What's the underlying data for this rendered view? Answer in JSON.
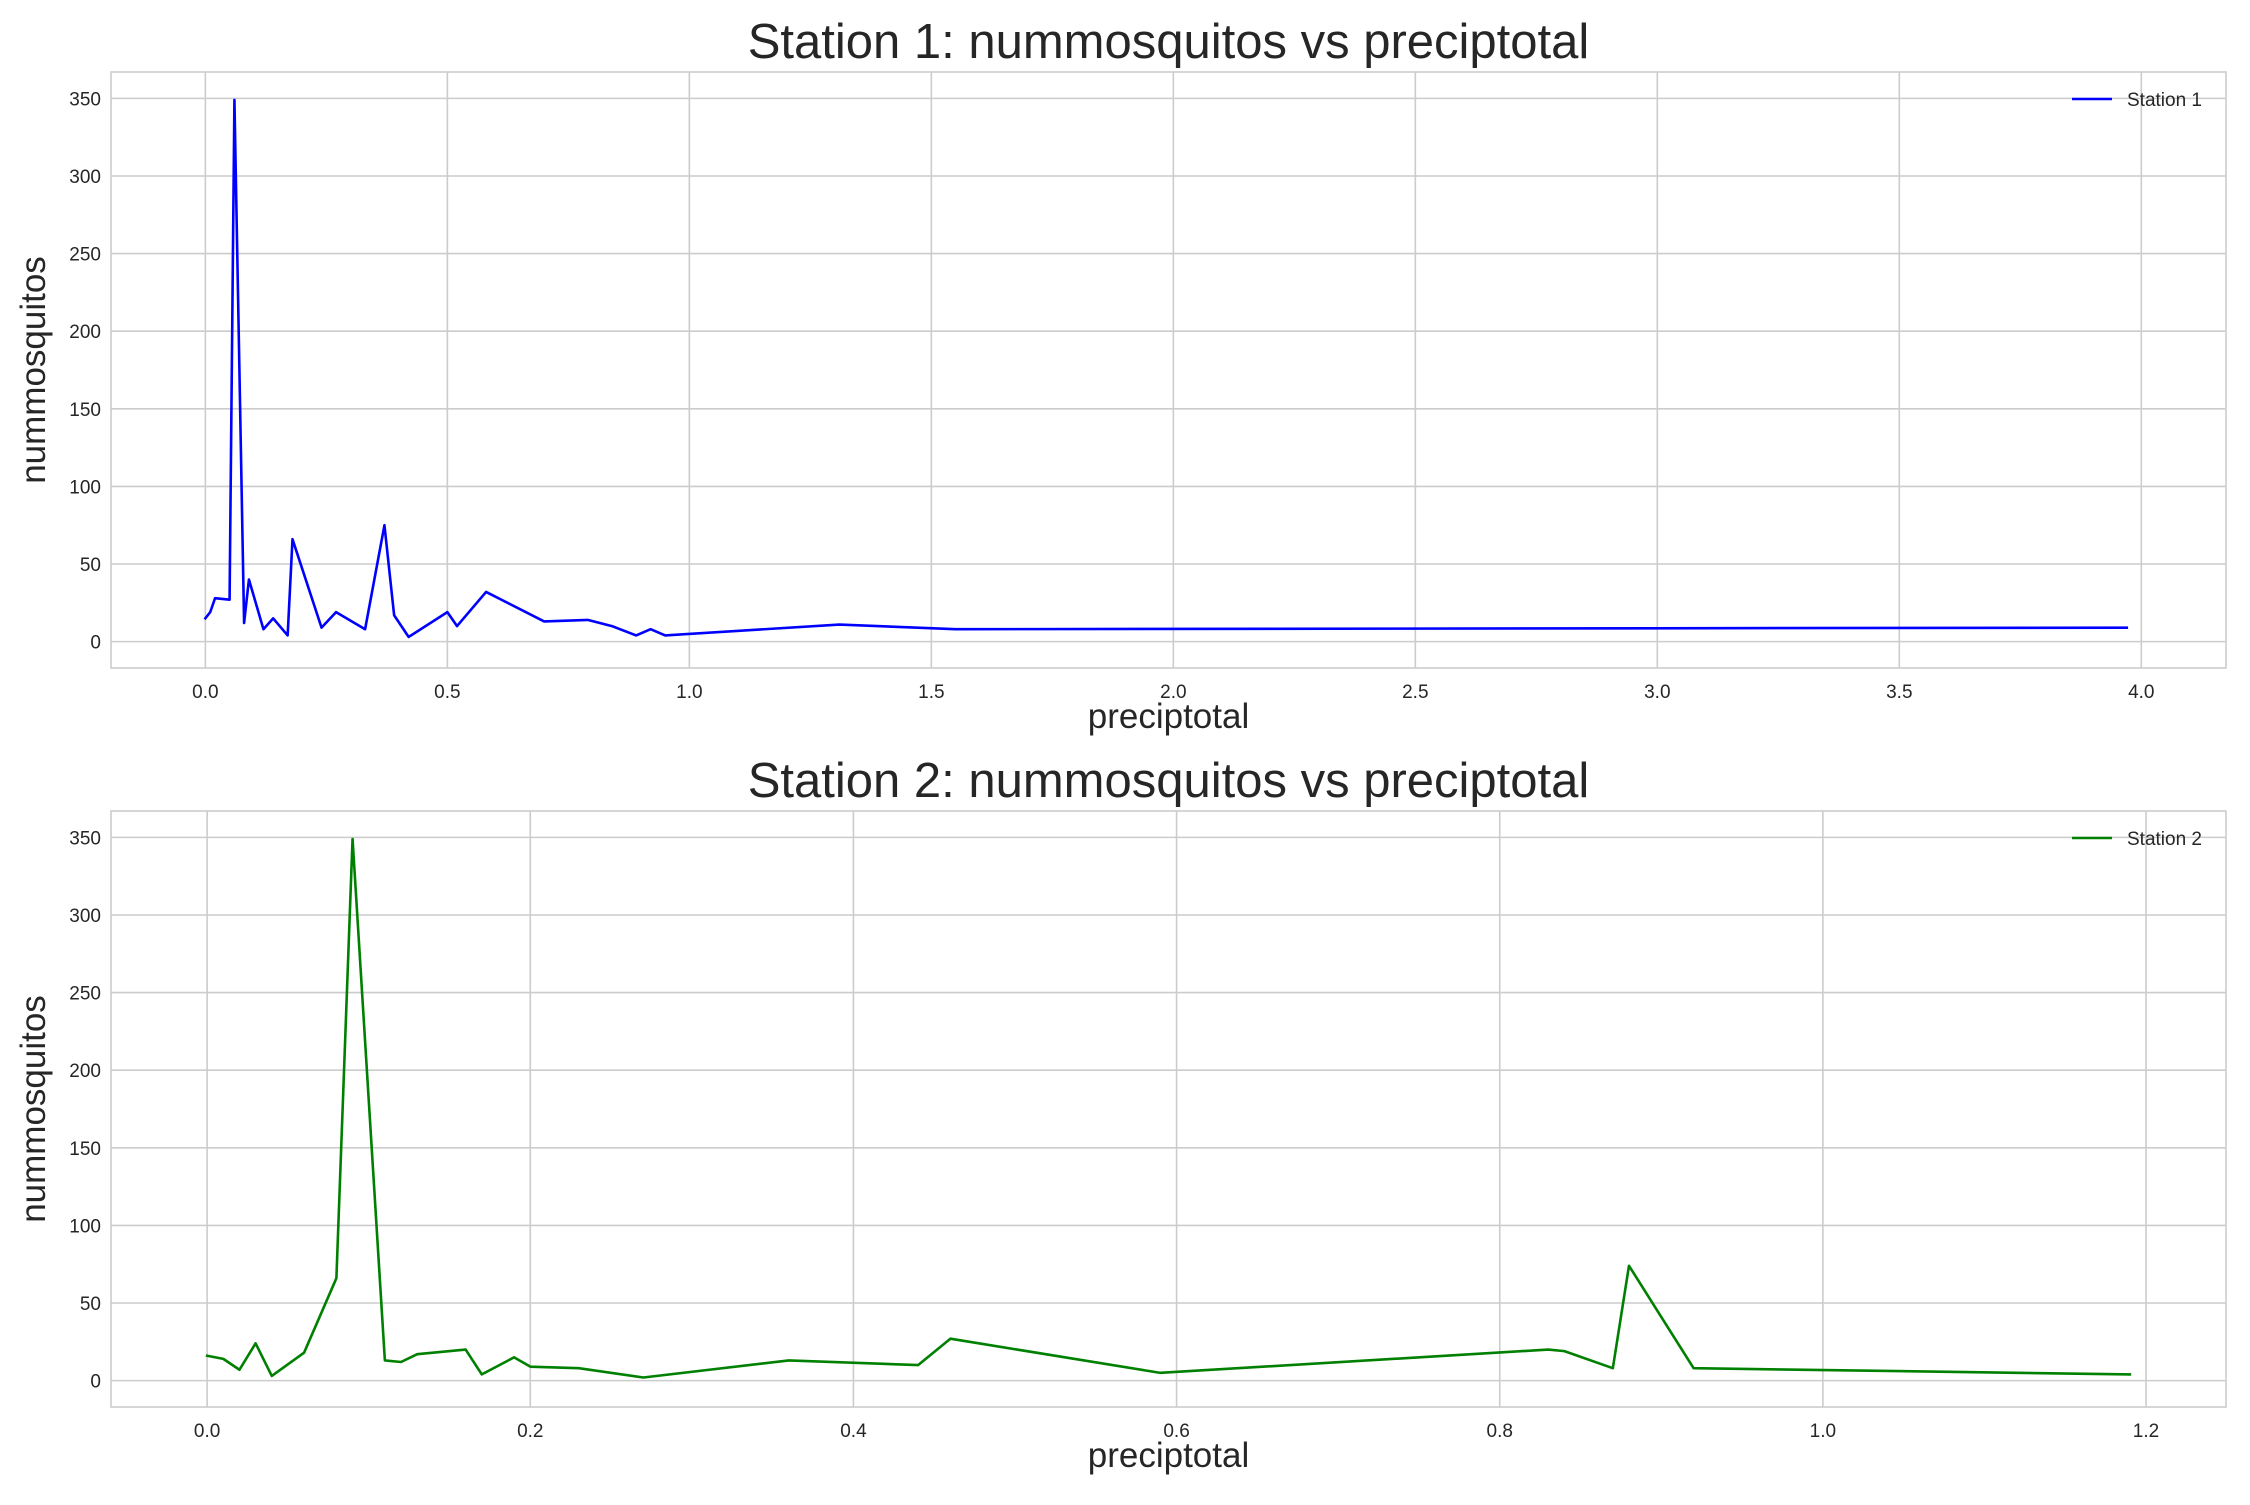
{
  "chart_data": [
    {
      "type": "line",
      "title": "Station 1:  nummosquitos vs  preciptotal",
      "xlabel": "preciptotal",
      "ylabel": "nummosquitos",
      "xlim": [
        -0.195,
        4.175
      ],
      "ylim": [
        -17,
        367
      ],
      "xticks": [
        0.0,
        0.5,
        1.0,
        1.5,
        2.0,
        2.5,
        3.0,
        3.5,
        4.0
      ],
      "xtick_labels": [
        "0.0",
        "0.5",
        "1.0",
        "1.5",
        "2.0",
        "2.5",
        "3.0",
        "3.5",
        "4.0"
      ],
      "yticks": [
        0,
        50,
        100,
        150,
        200,
        250,
        300,
        350
      ],
      "ytick_labels": [
        "0",
        "50",
        "100",
        "150",
        "200",
        "250",
        "300",
        "350"
      ],
      "grid": true,
      "legend_position": "top-right",
      "series": [
        {
          "name": "Station 1",
          "color": "#0000ff",
          "x": [
            0.0,
            0.01,
            0.02,
            0.05,
            0.06,
            0.08,
            0.09,
            0.12,
            0.14,
            0.17,
            0.18,
            0.24,
            0.27,
            0.33,
            0.37,
            0.39,
            0.42,
            0.5,
            0.52,
            0.58,
            0.7,
            0.79,
            0.84,
            0.89,
            0.92,
            0.95,
            1.31,
            1.55,
            3.97
          ],
          "y": [
            15,
            19,
            28,
            27,
            349,
            12,
            40,
            8,
            15,
            4,
            66,
            9,
            19,
            8,
            75,
            17,
            3,
            19,
            10,
            32,
            13,
            14,
            10,
            4,
            8,
            4,
            11,
            8,
            9
          ]
        }
      ]
    },
    {
      "type": "line",
      "title": "Station 2:  nummosquitos vs  preciptotal",
      "xlabel": "preciptotal",
      "ylabel": "nummosquitos",
      "xlim": [
        -0.0595,
        1.2495
      ],
      "ylim": [
        -17,
        367
      ],
      "xticks": [
        0.0,
        0.2,
        0.4,
        0.6,
        0.8,
        1.0,
        1.2
      ],
      "xtick_labels": [
        "0.0",
        "0.2",
        "0.4",
        "0.6",
        "0.8",
        "1.0",
        "1.2"
      ],
      "yticks": [
        0,
        50,
        100,
        150,
        200,
        250,
        300,
        350
      ],
      "ytick_labels": [
        "0",
        "50",
        "100",
        "150",
        "200",
        "250",
        "300",
        "350"
      ],
      "grid": true,
      "legend_position": "top-right",
      "series": [
        {
          "name": "Station 2",
          "color": "#008000",
          "x": [
            0.0,
            0.01,
            0.02,
            0.03,
            0.04,
            0.06,
            0.08,
            0.09,
            0.11,
            0.12,
            0.13,
            0.16,
            0.17,
            0.19,
            0.2,
            0.23,
            0.27,
            0.36,
            0.44,
            0.46,
            0.59,
            0.83,
            0.84,
            0.87,
            0.88,
            0.92,
            1.19
          ],
          "y": [
            16,
            14,
            7,
            24,
            3,
            18,
            66,
            349,
            13,
            12,
            17,
            20,
            4,
            15,
            9,
            8,
            2,
            13,
            10,
            27,
            5,
            20,
            19,
            8,
            74,
            8,
            4
          ]
        }
      ]
    }
  ]
}
